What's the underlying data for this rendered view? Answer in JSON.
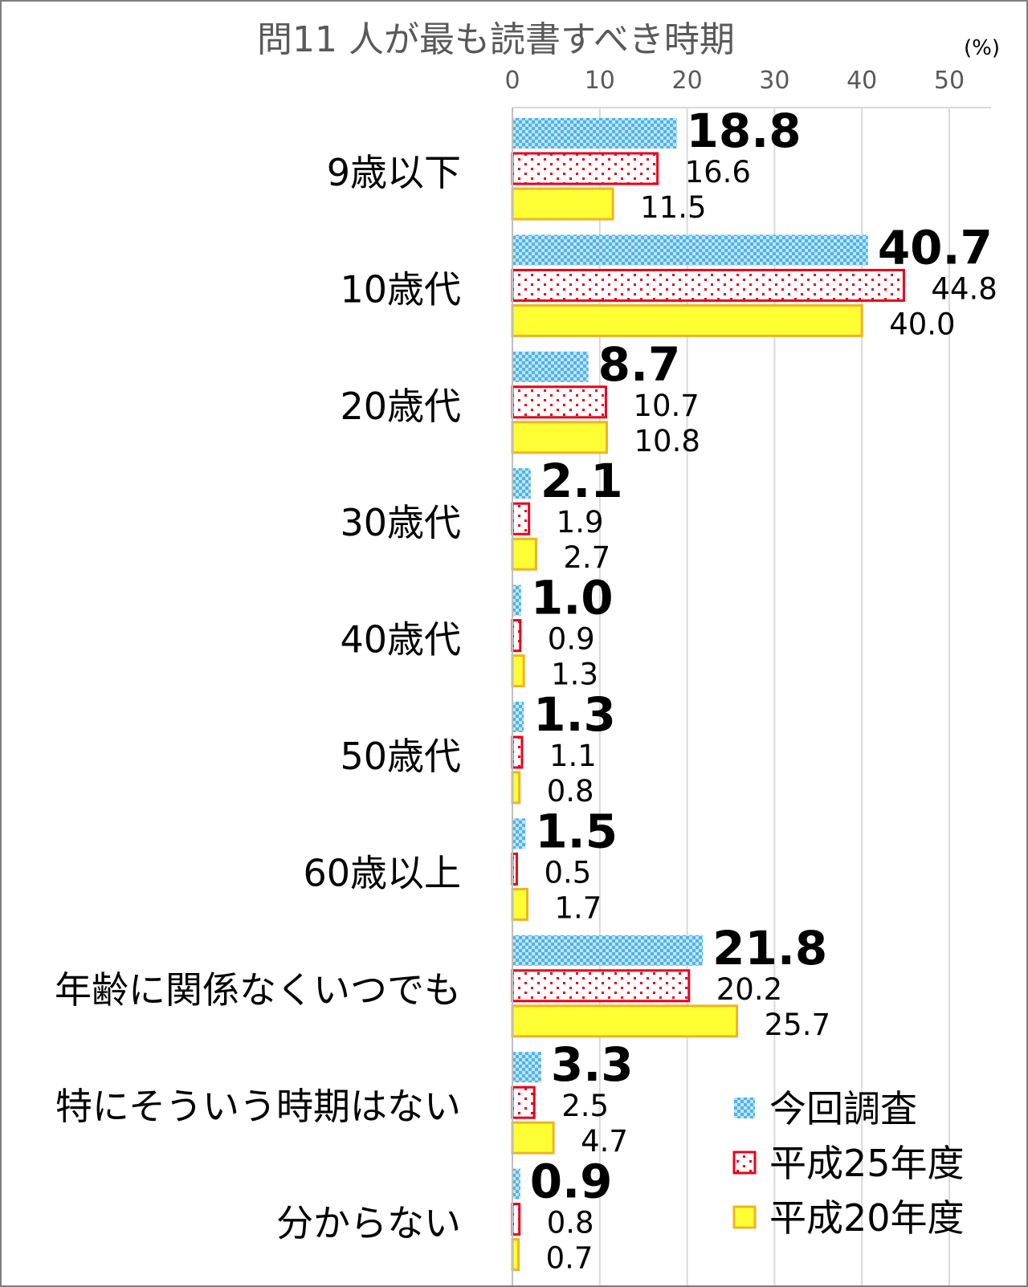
{
  "chart_data": {
    "type": "bar",
    "orientation": "horizontal",
    "title": "問11 人が最も読書すべき時期",
    "unit_label": "(%)",
    "xlim": [
      0,
      55
    ],
    "ticks": [
      0,
      10,
      20,
      30,
      40,
      50
    ],
    "grid": true,
    "legend_position": "bottom-right",
    "categories": [
      "9歳以下",
      "10歳代",
      "20歳代",
      "30歳代",
      "40歳代",
      "50歳代",
      "60歳以上",
      "年齢に関係なくいつでも",
      "特にそういう時期はない",
      "分からない"
    ],
    "series": [
      {
        "name": "今回調査",
        "values": [
          18.8,
          40.7,
          8.7,
          2.1,
          1.0,
          1.3,
          1.5,
          21.8,
          3.3,
          0.9
        ],
        "labels": [
          "18.8",
          "40.7",
          "8.7",
          "2.1",
          "1.0",
          "1.3",
          "1.5",
          "21.8",
          "3.3",
          "0.9"
        ],
        "color": "#4fb3e8",
        "pattern": "checker",
        "bold_labels": true
      },
      {
        "name": "平成25年度",
        "values": [
          16.6,
          44.8,
          10.7,
          1.9,
          0.9,
          1.1,
          0.5,
          20.2,
          2.5,
          0.8
        ],
        "labels": [
          "16.6",
          "44.8",
          "10.7",
          "1.9",
          "0.9",
          "1.1",
          "0.5",
          "20.2",
          "2.5",
          "0.8"
        ],
        "color": "#e8001c",
        "pattern": "dots",
        "bold_labels": false
      },
      {
        "name": "平成20年度",
        "values": [
          11.5,
          40.0,
          10.8,
          2.7,
          1.3,
          0.8,
          1.7,
          25.7,
          4.7,
          0.7
        ],
        "labels": [
          "11.5",
          "40.0",
          "10.8",
          "2.7",
          "1.3",
          "0.8",
          "1.7",
          "25.7",
          "4.7",
          "0.7"
        ],
        "color": "#ffff33",
        "border": "#f0b323",
        "pattern": "solid",
        "bold_labels": false
      }
    ]
  }
}
